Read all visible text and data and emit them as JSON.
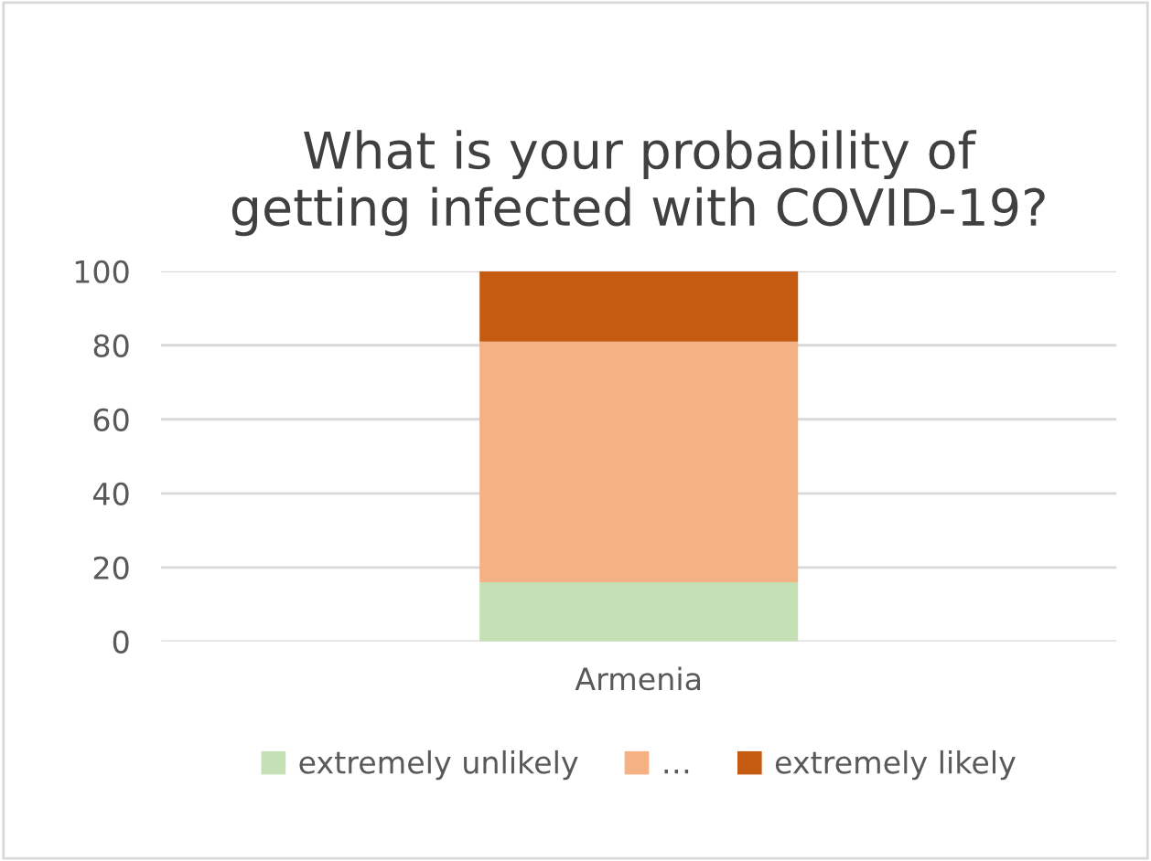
{
  "chart_data": {
    "type": "bar",
    "title": "What is your probability of\ngetting infected with COVID-19?",
    "stacked": true,
    "categories": [
      "Armenia"
    ],
    "series": [
      {
        "name": "extremely unlikely",
        "color": "#c5e0b4",
        "values": [
          16
        ]
      },
      {
        "name": "…",
        "color": "#f4b183",
        "values": [
          65
        ]
      },
      {
        "name": "extremely likely",
        "color": "#c55a11",
        "values": [
          19
        ]
      }
    ],
    "ylim": [
      0,
      100
    ],
    "yticks": [
      0,
      20,
      40,
      60,
      80,
      100
    ],
    "grid": "y",
    "legend": "bottom"
  }
}
